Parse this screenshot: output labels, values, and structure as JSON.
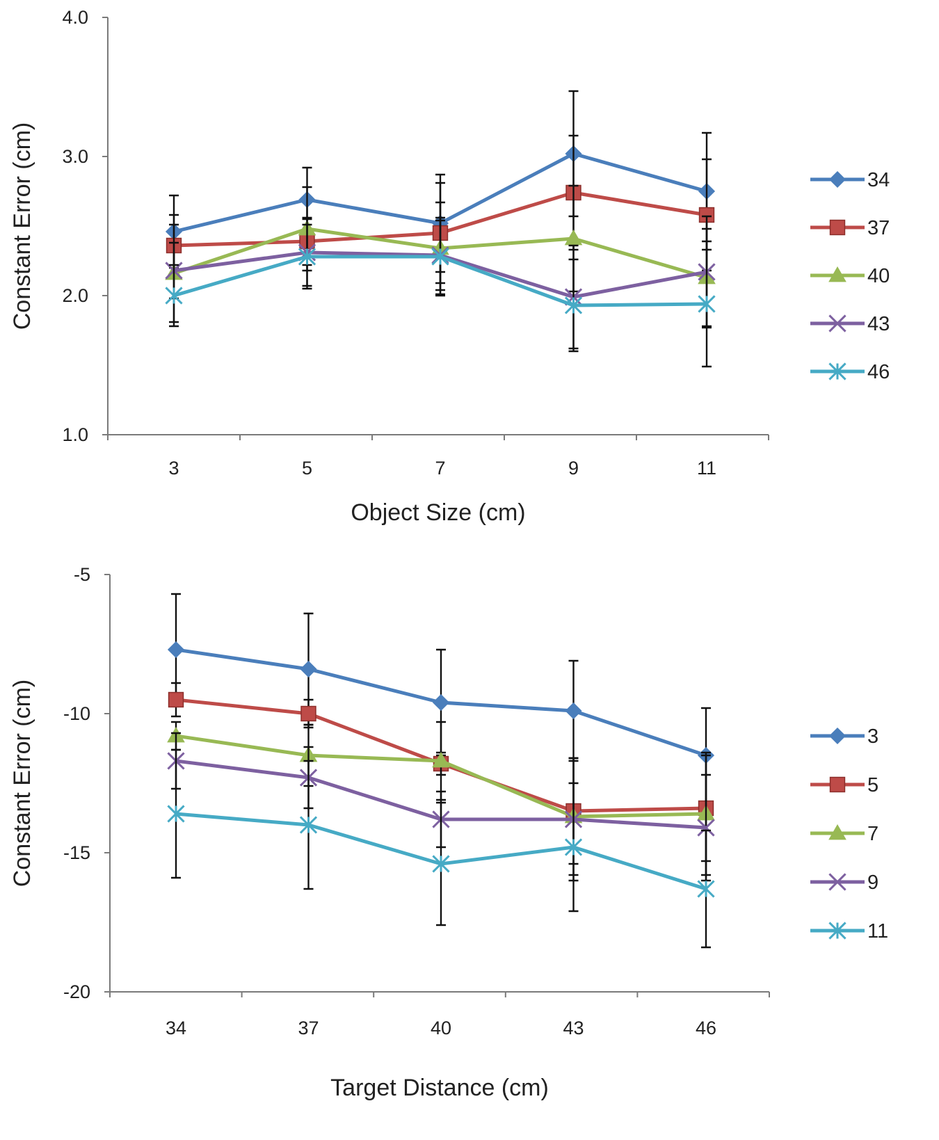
{
  "chart_data": [
    {
      "type": "line",
      "xlabel": "Object Size (cm)",
      "ylabel": "Constant Error (cm)",
      "categories": [
        "3",
        "5",
        "7",
        "9",
        "11"
      ],
      "ylim": [
        1.0,
        4.0
      ],
      "yticks": [
        "1.0",
        "2.0",
        "3.0",
        "4.0"
      ],
      "legend_position": "right",
      "series": [
        {
          "name": "34",
          "color": "#4a7ebb",
          "marker": "diamond",
          "values": [
            2.46,
            2.69,
            2.52,
            3.02,
            2.75
          ],
          "errors": [
            0.26,
            0.23,
            0.35,
            0.45,
            0.42
          ]
        },
        {
          "name": "37",
          "color": "#be4b48",
          "marker": "square",
          "values": [
            2.36,
            2.39,
            2.45,
            2.74,
            2.58
          ],
          "errors": [
            0.22,
            0.17,
            0.36,
            0.41,
            0.4
          ]
        },
        {
          "name": "40",
          "color": "#98b954",
          "marker": "triangle",
          "values": [
            2.16,
            2.48,
            2.34,
            2.41,
            2.13
          ],
          "errors": [
            0.35,
            0.3,
            0.33,
            0.38,
            0.35
          ]
        },
        {
          "name": "43",
          "color": "#7d60a0",
          "marker": "x",
          "values": [
            2.18,
            2.31,
            2.29,
            1.99,
            2.17
          ],
          "errors": [
            0.2,
            0.24,
            0.25,
            0.37,
            0.4
          ]
        },
        {
          "name": "46",
          "color": "#46aac5",
          "marker": "star",
          "values": [
            2.0,
            2.28,
            2.28,
            1.93,
            1.94
          ],
          "errors": [
            0.22,
            0.23,
            0.28,
            0.33,
            0.45
          ]
        }
      ]
    },
    {
      "type": "line",
      "xlabel": "Target Distance (cm)",
      "ylabel": "Constant Error (cm)",
      "categories": [
        "34",
        "37",
        "40",
        "43",
        "46"
      ],
      "ylim": [
        -20,
        -5
      ],
      "yticks": [
        "-20",
        "-15",
        "-10",
        "-5"
      ],
      "legend_position": "right",
      "series": [
        {
          "name": "3",
          "color": "#4a7ebb",
          "marker": "diamond",
          "values": [
            -7.7,
            -8.4,
            -9.6,
            -9.9,
            -11.5
          ],
          "errors": [
            2.0,
            2.0,
            1.9,
            1.8,
            1.7
          ]
        },
        {
          "name": "5",
          "color": "#be4b48",
          "marker": "square",
          "values": [
            -9.5,
            -10.0,
            -11.8,
            -13.5,
            -13.4
          ],
          "errors": [
            0.6,
            0.5,
            0.4,
            1.9,
            1.9
          ]
        },
        {
          "name": "7",
          "color": "#98b954",
          "marker": "triangle",
          "values": [
            -10.8,
            -11.5,
            -11.7,
            -13.7,
            -13.6
          ],
          "errors": [
            0.5,
            1.1,
            1.4,
            2.1,
            2.2
          ]
        },
        {
          "name": "9",
          "color": "#7d60a0",
          "marker": "x",
          "values": [
            -11.7,
            -12.3,
            -13.8,
            -13.8,
            -14.1
          ],
          "errors": [
            1.0,
            1.1,
            1.0,
            2.2,
            1.9
          ]
        },
        {
          "name": "11",
          "color": "#46aac5",
          "marker": "star",
          "values": [
            -13.6,
            -14.0,
            -15.4,
            -14.8,
            -16.3
          ],
          "errors": [
            2.3,
            2.3,
            2.2,
            2.3,
            2.1
          ]
        }
      ]
    }
  ]
}
